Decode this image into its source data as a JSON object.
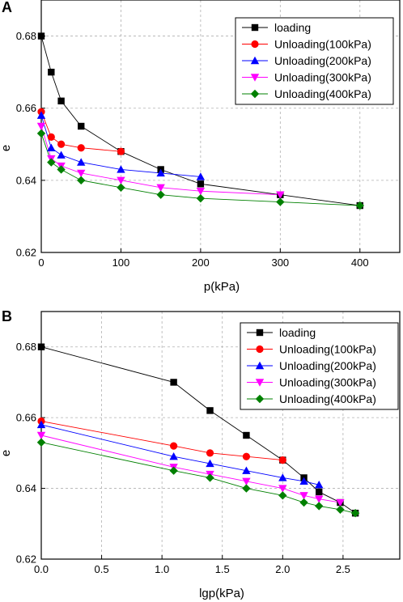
{
  "panels": [
    {
      "label": "A",
      "x_label": "p(kPa)",
      "y_label": "e"
    },
    {
      "label": "B",
      "x_label": "lgp(kPa)",
      "y_label": "e"
    }
  ],
  "chart_data": [
    {
      "type": "line",
      "panel": "A",
      "xlabel": "p(kPa)",
      "ylabel": "e",
      "xlim": [
        0,
        450
      ],
      "ylim": [
        0.62,
        0.69
      ],
      "xticks": [
        0,
        100,
        200,
        300,
        400
      ],
      "yticks": [
        0.62,
        0.64,
        0.66,
        0.68
      ],
      "grid": true,
      "legend_position": "top-right",
      "series": [
        {
          "name": "loading",
          "color": "#000000",
          "marker": "square",
          "x": [
            0,
            12.5,
            25,
            50,
            100,
            150,
            200,
            300,
            400
          ],
          "y": [
            0.68,
            0.67,
            0.662,
            0.655,
            0.648,
            0.643,
            0.639,
            0.636,
            0.633
          ]
        },
        {
          "name": "Unloading(100kPa)",
          "color": "#ff0000",
          "marker": "circle",
          "x": [
            0,
            12.5,
            25,
            50,
            100
          ],
          "y": [
            0.659,
            0.652,
            0.65,
            0.649,
            0.648
          ]
        },
        {
          "name": "Unloading(200kPa)",
          "color": "#0000ff",
          "marker": "triangle-up",
          "x": [
            0,
            12.5,
            25,
            50,
            100,
            150,
            200
          ],
          "y": [
            0.658,
            0.649,
            0.647,
            0.645,
            0.643,
            0.642,
            0.641
          ]
        },
        {
          "name": "Unloading(300kPa)",
          "color": "#ff00ff",
          "marker": "triangle-down",
          "x": [
            0,
            12.5,
            25,
            50,
            100,
            150,
            200,
            300
          ],
          "y": [
            0.655,
            0.646,
            0.644,
            0.642,
            0.64,
            0.638,
            0.637,
            0.636
          ]
        },
        {
          "name": "Unloading(400kPa)",
          "color": "#008000",
          "marker": "diamond",
          "x": [
            0,
            12.5,
            25,
            50,
            100,
            150,
            200,
            300,
            400
          ],
          "y": [
            0.653,
            0.645,
            0.643,
            0.64,
            0.638,
            0.636,
            0.635,
            0.634,
            0.633
          ]
        }
      ]
    },
    {
      "type": "line",
      "panel": "B",
      "xlabel": "lgp(kPa)",
      "ylabel": "e",
      "xlim": [
        0,
        2.97
      ],
      "ylim": [
        0.62,
        0.69
      ],
      "xticks": [
        0.0,
        0.5,
        1.0,
        1.5,
        2.0,
        2.5
      ],
      "xtick_labels": [
        "0.0",
        "0.5",
        "1.0",
        "1.5",
        "2.0",
        "2.5"
      ],
      "yticks": [
        0.62,
        0.64,
        0.66,
        0.68
      ],
      "grid": true,
      "legend_position": "top-right",
      "series": [
        {
          "name": "loading",
          "color": "#000000",
          "marker": "square",
          "x": [
            0,
            1.097,
            1.398,
            1.699,
            2.0,
            2.176,
            2.301,
            2.477,
            2.602
          ],
          "y": [
            0.68,
            0.67,
            0.662,
            0.655,
            0.648,
            0.643,
            0.639,
            0.636,
            0.633
          ]
        },
        {
          "name": "Unloading(100kPa)",
          "color": "#ff0000",
          "marker": "circle",
          "x": [
            0,
            1.097,
            1.398,
            1.699,
            2.0
          ],
          "y": [
            0.659,
            0.652,
            0.65,
            0.649,
            0.648
          ]
        },
        {
          "name": "Unloading(200kPa)",
          "color": "#0000ff",
          "marker": "triangle-up",
          "x": [
            0,
            1.097,
            1.398,
            1.699,
            2.0,
            2.176,
            2.301
          ],
          "y": [
            0.658,
            0.649,
            0.647,
            0.645,
            0.643,
            0.642,
            0.641
          ]
        },
        {
          "name": "Unloading(300kPa)",
          "color": "#ff00ff",
          "marker": "triangle-down",
          "x": [
            0,
            1.097,
            1.398,
            1.699,
            2.0,
            2.176,
            2.301,
            2.477
          ],
          "y": [
            0.655,
            0.646,
            0.644,
            0.642,
            0.64,
            0.638,
            0.637,
            0.636
          ]
        },
        {
          "name": "Unloading(400kPa)",
          "color": "#008000",
          "marker": "diamond",
          "x": [
            0,
            1.097,
            1.398,
            1.699,
            2.0,
            2.176,
            2.301,
            2.477,
            2.602
          ],
          "y": [
            0.653,
            0.645,
            0.643,
            0.64,
            0.638,
            0.636,
            0.635,
            0.634,
            0.633
          ]
        }
      ]
    }
  ]
}
